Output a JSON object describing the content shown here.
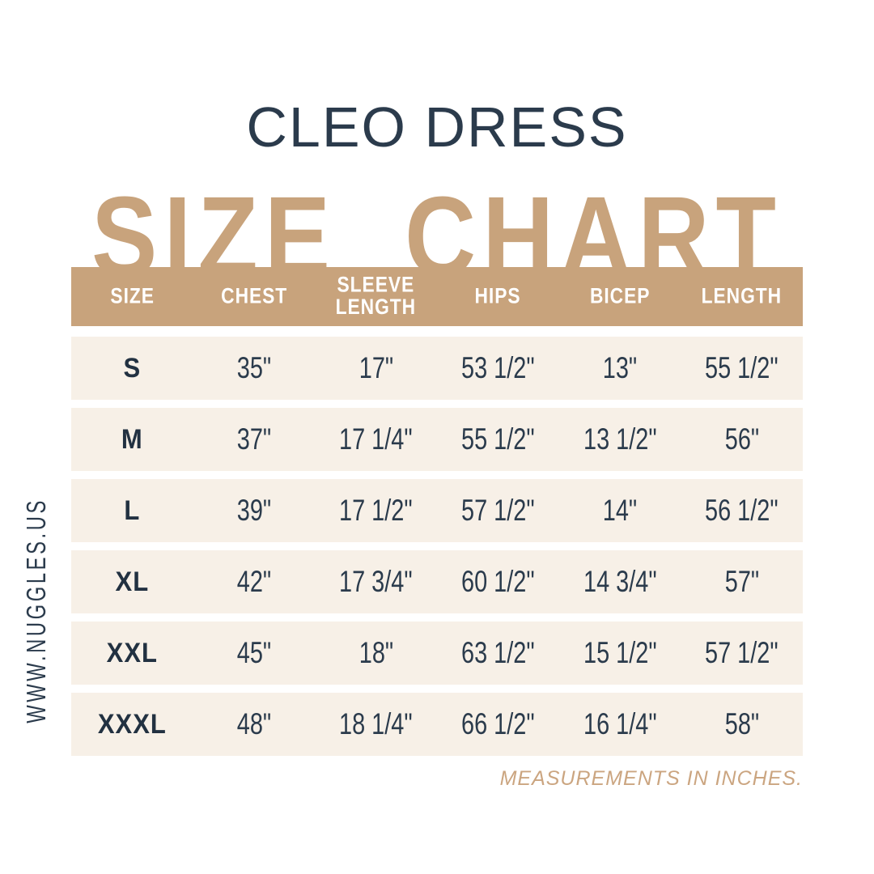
{
  "page": {
    "product_title": "CLEO DRESS",
    "chart_title": "SIZE CHART",
    "website": "WWW.NUGGLES.US",
    "footnote": "MEASUREMENTS IN INCHES."
  },
  "colors": {
    "tan": "#c8a37c",
    "cream_row": "#f7f0e7",
    "navy_text": "#2b3b4c",
    "footnote_tan": "#cba580",
    "header_text": "#ffffff",
    "background": "#ffffff"
  },
  "chart_data": {
    "type": "table",
    "title": "CLEO DRESS SIZE CHART",
    "units_note": "MEASUREMENTS IN INCHES.",
    "columns": [
      "SIZE",
      "CHEST",
      "SLEEVE LENGTH",
      "HIPS",
      "BICEP",
      "LENGTH"
    ],
    "rows": [
      [
        "S",
        "35\"",
        "17\"",
        "53 1/2\"",
        "13\"",
        "55 1/2\""
      ],
      [
        "M",
        "37\"",
        "17 1/4\"",
        "55 1/2\"",
        "13 1/2\"",
        "56\""
      ],
      [
        "L",
        "39\"",
        "17 1/2\"",
        "57 1/2\"",
        "14\"",
        "56 1/2\""
      ],
      [
        "XL",
        "42\"",
        "17 3/4\"",
        "60 1/2\"",
        "14 3/4\"",
        "57\""
      ],
      [
        "XXL",
        "45\"",
        "18\"",
        "63 1/2\"",
        "15 1/2\"",
        "57 1/2\""
      ],
      [
        "XXXL",
        "48\"",
        "18 1/4\"",
        "66 1/2\"",
        "16 1/4\"",
        "58\""
      ]
    ]
  }
}
